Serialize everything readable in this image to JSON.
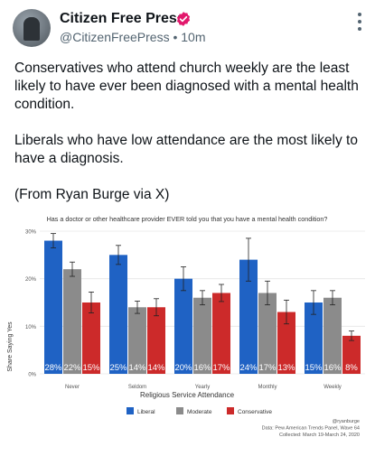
{
  "tweet": {
    "author_name": "Citizen Free Press",
    "handle": "@CitizenFreePress",
    "separator": "•",
    "time": "10m",
    "paragraphs": [
      "Conservatives who attend church weekly are the least likely to have ever been diagnosed with a mental health condition.",
      "Liberals who have low attendance are the most likely to have a diagnosis.",
      "(From Ryan Burge via X)"
    ]
  },
  "colors": {
    "verified": "#e2186c",
    "liberal": "#1f62c4",
    "moderate": "#8b8b8b",
    "conservative": "#cc2a2a"
  },
  "chart_data": {
    "type": "bar",
    "title": "Has a doctor or other healthcare provider EVER told you that you have a mental health condition?",
    "xlabel": "Religious Service Attendance",
    "ylabel": "Share Saying Yes",
    "ylim": [
      0,
      30
    ],
    "yticks": [
      "0%",
      "10%",
      "20%",
      "30%"
    ],
    "grid": true,
    "legend_position": "bottom",
    "categories": [
      "Never",
      "Seldom",
      "Yearly",
      "Monthly",
      "Weekly"
    ],
    "series": [
      {
        "name": "Liberal",
        "values": [
          28,
          25,
          20,
          24,
          15
        ],
        "labels": [
          "28%",
          "25%",
          "20%",
          "24%",
          "15%"
        ],
        "errors": [
          1.5,
          2.0,
          2.5,
          4.5,
          2.5
        ]
      },
      {
        "name": "Moderate",
        "values": [
          22,
          14,
          16,
          17,
          16
        ],
        "labels": [
          "22%",
          "14%",
          "16%",
          "17%",
          "16%"
        ],
        "errors": [
          1.5,
          1.3,
          1.5,
          2.5,
          1.5
        ]
      },
      {
        "name": "Conservative",
        "values": [
          15,
          14,
          17,
          13,
          8
        ],
        "labels": [
          "15%",
          "14%",
          "17%",
          "13%",
          "8%"
        ],
        "errors": [
          2.2,
          1.8,
          1.8,
          2.5,
          1.0
        ]
      }
    ],
    "source_lines": [
      "@ryanburge",
      "Data: Pew American Trends Panel, Wave 64",
      "Collected: March 19-March 24, 2020"
    ]
  }
}
